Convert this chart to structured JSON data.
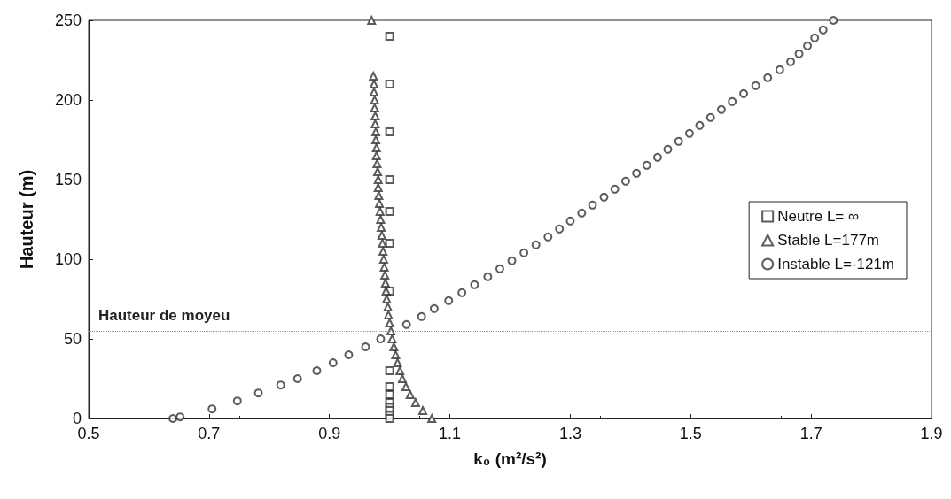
{
  "chart_data": {
    "type": "scatter",
    "xlabel": "k₀ (m²/s²)",
    "ylabel": "Hauteur (m)",
    "xlim": [
      0.5,
      1.9
    ],
    "xticks": [
      0.5,
      0.7,
      0.9,
      1.1,
      1.3,
      1.5,
      1.7,
      1.9
    ],
    "ylim": [
      0,
      250
    ],
    "yticks": [
      0,
      50,
      100,
      150,
      200,
      250
    ],
    "grid": false,
    "legend": "right",
    "ref_lines": [
      {
        "axis": "y",
        "value": 55,
        "label": "Hauteur de moyeu",
        "color": "#999999",
        "line_style": "dotted"
      }
    ],
    "series": [
      {
        "name": "Neutre L= ∞",
        "color": "#333333",
        "marker": "square",
        "x": [
          1.0,
          1.0,
          1.0,
          1.0,
          1.0,
          1.0,
          1.0,
          1.0,
          1.0,
          1.0,
          1.0,
          1.0,
          1.0,
          1.0,
          1.0
        ],
        "values": [
          240,
          210,
          180,
          150,
          130,
          110,
          80,
          30,
          20,
          15,
          10,
          7,
          5,
          2,
          0
        ]
      },
      {
        "name": "Stable L=177m",
        "color": "#333333",
        "marker": "triangle",
        "x": [
          1.07,
          1.055,
          1.043,
          1.034,
          1.027,
          1.021,
          1.017,
          1.013,
          1.01,
          1.007,
          1.004,
          1.002,
          1.0,
          0.998,
          0.997,
          0.995,
          0.994,
          0.993,
          0.992,
          0.991,
          0.99,
          0.989,
          0.988,
          0.987,
          0.986,
          0.985,
          0.984,
          0.983,
          0.982,
          0.981,
          0.981,
          0.98,
          0.979,
          0.978,
          0.978,
          0.977,
          0.977,
          0.976,
          0.976,
          0.975,
          0.975,
          0.974,
          0.974,
          0.973,
          0.97
        ],
        "values": [
          0,
          5,
          10,
          15,
          20,
          25,
          30,
          35,
          40,
          45,
          50,
          55,
          60,
          65,
          70,
          75,
          80,
          85,
          90,
          95,
          100,
          105,
          110,
          115,
          120,
          125,
          130,
          135,
          140,
          145,
          150,
          155,
          160,
          165,
          170,
          175,
          180,
          185,
          190,
          195,
          200,
          205,
          210,
          215,
          250
        ]
      },
      {
        "name": "Instable L=-121m",
        "color": "#333333",
        "marker": "circle",
        "x": [
          0.64,
          0.652,
          0.705,
          0.747,
          0.782,
          0.819,
          0.847,
          0.879,
          0.906,
          0.932,
          0.96,
          0.985,
          1.028,
          1.053,
          1.074,
          1.098,
          1.12,
          1.141,
          1.163,
          1.183,
          1.203,
          1.223,
          1.243,
          1.263,
          1.282,
          1.3,
          1.319,
          1.337,
          1.356,
          1.374,
          1.392,
          1.41,
          1.427,
          1.445,
          1.462,
          1.48,
          1.498,
          1.515,
          1.533,
          1.551,
          1.569,
          1.588,
          1.608,
          1.628,
          1.648,
          1.666,
          1.68,
          1.694,
          1.706,
          1.72,
          1.737
        ],
        "values": [
          0,
          1,
          6,
          11,
          16,
          21,
          25,
          30,
          35,
          40,
          45,
          50,
          59,
          64,
          69,
          74,
          79,
          84,
          89,
          94,
          99,
          104,
          109,
          114,
          119,
          124,
          129,
          134,
          139,
          144,
          149,
          154,
          159,
          164,
          169,
          174,
          179,
          184,
          189,
          194,
          199,
          204,
          209,
          214,
          219,
          224,
          229,
          234,
          239,
          244,
          250
        ]
      }
    ]
  }
}
